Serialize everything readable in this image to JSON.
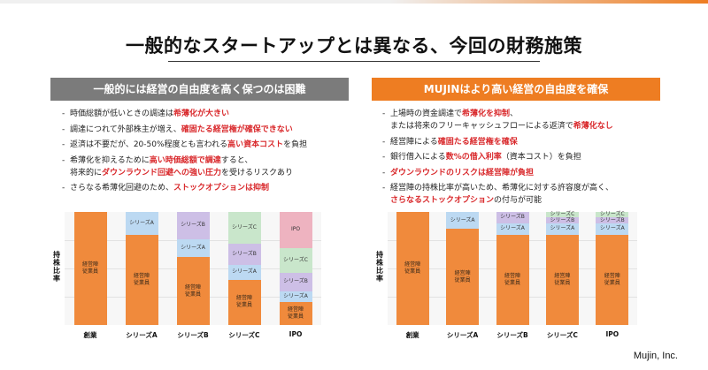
{
  "title": "一般的なスタートアップとは異なる、今回の財務施策",
  "left_panel": {
    "header": "一般的には経営の自由度を高く保つのは困難",
    "bullets": [
      {
        "text_a": "時価総額が低いときの調達は",
        "red": "希薄化が大きい",
        "text_b": ""
      },
      {
        "text_a": "調達につれて外部株主が増え、",
        "red": "確固たる経営権が確保できない",
        "text_b": ""
      },
      {
        "text_a": "返済は不要だが、20-50%程度とも言われる",
        "red": "高い資本コスト",
        "text_b": "を負担"
      },
      {
        "text_a": "希薄化を抑えるために",
        "red": "高い時価総額で調達",
        "text_b": "すると、",
        "cont_a": "将来的に",
        "cont_red": "ダウンラウンド回避への強い圧力",
        "cont_b": "を受けるリスクあり"
      },
      {
        "text_a": "さらなる希薄化回避のため、",
        "red": "ストックオプションは抑制",
        "text_b": ""
      }
    ]
  },
  "right_panel": {
    "header": "MUJINはより高い経営の自由度を確保",
    "bullets": [
      {
        "text_a": "上場時の資金調達で",
        "red": "希薄化を抑制",
        "text_b": "、",
        "cont_a": "または将来のフリーキャッシュフローによる返済で",
        "cont_red": "希薄化なし",
        "cont_b": ""
      },
      {
        "text_a": "経営陣による",
        "red": "確固たる経営権を確保",
        "text_b": ""
      },
      {
        "text_a": "銀行借入による",
        "red": "数%の借入利率",
        "text_b": "（資本コスト）を負担"
      },
      {
        "text_a": "",
        "red": "ダウンラウンドのリスクは経営陣が負担",
        "text_b": ""
      },
      {
        "text_a": "経営陣の持株比率が高いため、希薄化に対する許容度が高く、",
        "red": "",
        "text_b": "",
        "cont_a": "",
        "cont_red": "さらなるストックオプション",
        "cont_b": "の付与が可能"
      }
    ]
  },
  "y_axis_label": "持株比率",
  "stages": [
    "創業",
    "シリーズA",
    "シリーズB",
    "シリーズC",
    "IPO"
  ],
  "segment_labels": {
    "mgmt": "経営陣\n従業員",
    "A": "シリーズA",
    "B": "シリーズB",
    "C": "シリーズC",
    "IPO": "IPO"
  },
  "chart_data": [
    {
      "type": "bar",
      "stacked": true,
      "categories": [
        "創業",
        "シリーズA",
        "シリーズB",
        "シリーズC",
        "IPO"
      ],
      "ylabel": "持株比率",
      "series": [
        {
          "name": "経営陣 従業員",
          "color": "#f08a3c",
          "values": [
            100,
            80,
            60,
            40,
            20
          ]
        },
        {
          "name": "シリーズA",
          "color": "#bcd9f2",
          "values": [
            0,
            20,
            16,
            13,
            10
          ]
        },
        {
          "name": "シリーズB",
          "color": "#cdbfe6",
          "values": [
            0,
            0,
            24,
            19,
            16
          ]
        },
        {
          "name": "シリーズC",
          "color": "#c9e6cb",
          "values": [
            0,
            0,
            0,
            28,
            22
          ]
        },
        {
          "name": "IPO",
          "color": "#eeb3c0",
          "values": [
            0,
            0,
            0,
            0,
            32
          ]
        }
      ]
    },
    {
      "type": "bar",
      "stacked": true,
      "categories": [
        "創業",
        "シリーズA",
        "シリーズB",
        "シリーズC",
        "IPO"
      ],
      "ylabel": "持株比率",
      "series": [
        {
          "name": "経営陣 従業員",
          "color": "#f08a3c",
          "values": [
            100,
            85,
            80,
            80,
            80
          ]
        },
        {
          "name": "シリーズA",
          "color": "#bcd9f2",
          "values": [
            0,
            15,
            10,
            10,
            10
          ]
        },
        {
          "name": "シリーズB",
          "color": "#cdbfe6",
          "values": [
            0,
            0,
            10,
            5,
            5
          ]
        },
        {
          "name": "シリーズC",
          "color": "#c9e6cb",
          "values": [
            0,
            0,
            0,
            5,
            5
          ]
        },
        {
          "name": "IPO",
          "color": "#eeb3c0",
          "values": [
            0,
            0,
            0,
            0,
            0
          ]
        }
      ]
    }
  ],
  "footer": "Mujin, Inc."
}
